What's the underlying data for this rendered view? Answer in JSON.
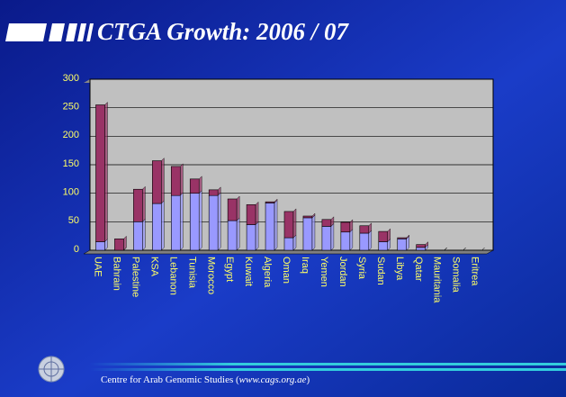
{
  "chart_data": {
    "type": "bar",
    "stacked": true,
    "title": "CTGA Growth: 2006 / 07",
    "categories": [
      "UAE",
      "Bahrain",
      "Palestine",
      "KSA",
      "Lebanon",
      "Tunisia",
      "Morocco",
      "Egypt",
      "Kuwait",
      "Algeria",
      "Oman",
      "Iraq",
      "Yemen",
      "Jordan",
      "Syria",
      "Sudan",
      "Libya",
      "Qatar",
      "Mauritania",
      "Somalia",
      "Eritrea"
    ],
    "series": [
      {
        "color": "#9999ff",
        "values": [
          15,
          0,
          50,
          82,
          96,
          100,
          96,
          52,
          45,
          83,
          22,
          57,
          42,
          32,
          30,
          15,
          20,
          5,
          0,
          0,
          0
        ]
      },
      {
        "color": "#993366",
        "values": [
          240,
          20,
          57,
          75,
          51,
          25,
          10,
          38,
          35,
          2,
          46,
          3,
          12,
          17,
          13,
          18,
          2,
          5,
          0,
          0,
          0
        ]
      }
    ],
    "ylim": [
      0,
      300
    ],
    "yticks": [
      0,
      50,
      100,
      150,
      200,
      250,
      300
    ],
    "grid": true
  },
  "footer": {
    "prefix": "Centre for Arab Genomic Studies (",
    "link": "www.cags.org.ae",
    "suffix": ")"
  }
}
